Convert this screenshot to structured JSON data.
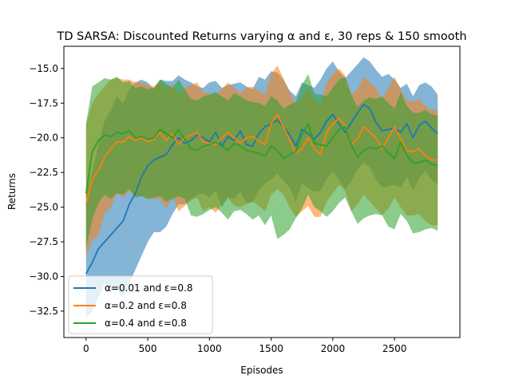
{
  "chart_data": {
    "type": "line",
    "title": "TD SARSA: Discounted Returns varying α and ε, 30 reps & 150 smooth",
    "xlabel": "Episodes",
    "ylabel": "Returns",
    "xlim": [
      -180,
      3030
    ],
    "ylim": [
      -34.4,
      -13.4
    ],
    "xticks": [
      0,
      500,
      1000,
      1500,
      2000,
      2500
    ],
    "yticks": [
      -32.5,
      -30.0,
      -27.5,
      -25.0,
      -22.5,
      -20.0,
      -17.5,
      -15.0
    ],
    "xtick_labels": [
      "0",
      "500",
      "1000",
      "1500",
      "2000",
      "2500"
    ],
    "ytick_labels": [
      "−32.5",
      "−30.0",
      "−27.5",
      "−25.0",
      "−22.5",
      "−20.0",
      "−17.5",
      "−15.0"
    ],
    "legend_position": "lower-left",
    "grid": false,
    "x": [
      0,
      50,
      100,
      150,
      200,
      250,
      300,
      350,
      400,
      450,
      500,
      550,
      600,
      650,
      700,
      750,
      800,
      850,
      900,
      950,
      1000,
      1050,
      1100,
      1150,
      1200,
      1250,
      1300,
      1350,
      1400,
      1450,
      1500,
      1550,
      1600,
      1650,
      1700,
      1750,
      1800,
      1850,
      1900,
      1950,
      2000,
      2050,
      2100,
      2150,
      2200,
      2250,
      2300,
      2350,
      2400,
      2450,
      2500,
      2550,
      2600,
      2650,
      2700,
      2750,
      2800,
      2850
    ],
    "series": [
      {
        "name": "α=0.01 and ε=0.8",
        "color": "#1f77b4",
        "values": [
          -29.8,
          -29.0,
          -28.0,
          -27.5,
          -27.0,
          -26.5,
          -26.0,
          -24.8,
          -24.0,
          -22.8,
          -22.0,
          -21.6,
          -21.4,
          -21.2,
          -20.5,
          -20.0,
          -20.4,
          -20.2,
          -19.8,
          -20.0,
          -20.3,
          -19.6,
          -20.6,
          -19.9,
          -20.2,
          -19.5,
          -20.5,
          -20.6,
          -19.7,
          -19.2,
          -19.0,
          -18.7,
          -19.2,
          -19.8,
          -20.6,
          -19.4,
          -19.7,
          -20.1,
          -19.6,
          -18.8,
          -18.3,
          -19.0,
          -19.6,
          -18.9,
          -18.2,
          -17.6,
          -17.9,
          -18.9,
          -19.5,
          -19.4,
          -19.3,
          -19.6,
          -19.0,
          -20.0,
          -19.1,
          -18.8,
          -19.3,
          -19.7
        ],
        "band_upper": [
          -24.0,
          -22.5,
          -20.5,
          -18.8,
          -18.0,
          -17.0,
          -17.5,
          -16.5,
          -16.0,
          -15.8,
          -16.0,
          -16.5,
          -15.8,
          -15.9,
          -15.9,
          -15.5,
          -15.8,
          -16.0,
          -16.3,
          -16.4,
          -16.0,
          -15.9,
          -16.4,
          -16.2,
          -16.1,
          -16.0,
          -16.3,
          -16.5,
          -15.6,
          -15.8,
          -15.2,
          -15.3,
          -15.8,
          -16.6,
          -17.0,
          -16.0,
          -16.2,
          -16.4,
          -15.8,
          -15.0,
          -14.5,
          -15.2,
          -15.7,
          -15.2,
          -14.7,
          -14.2,
          -14.5,
          -15.1,
          -15.6,
          -15.4,
          -15.8,
          -16.4,
          -16.1,
          -17.0,
          -16.2,
          -16.0,
          -16.3,
          -16.9
        ],
        "band_lower": [
          -33.0,
          -32.5,
          -31.5,
          -30.5,
          -31.0,
          -31.0,
          -31.5,
          -30.5,
          -29.5,
          -28.5,
          -27.5,
          -26.8,
          -26.8,
          -26.4,
          -25.5,
          -24.8,
          -24.8,
          -24.4,
          -24.1,
          -24.0,
          -24.3,
          -23.8,
          -25.0,
          -24.3,
          -24.4,
          -23.9,
          -24.7,
          -24.6,
          -23.8,
          -23.3,
          -23.0,
          -22.6,
          -23.1,
          -23.6,
          -24.6,
          -23.3,
          -23.6,
          -23.9,
          -23.8,
          -23.0,
          -22.4,
          -23.0,
          -23.7,
          -23.1,
          -22.3,
          -21.8,
          -22.1,
          -23.0,
          -23.6,
          -23.5,
          -23.4,
          -23.6,
          -22.8,
          -23.8,
          -22.9,
          -22.4,
          -23.0,
          -23.4
        ]
      },
      {
        "name": "α=0.2 and ε=0.8",
        "color": "#ff7f0e",
        "values": [
          -24.8,
          -23.0,
          -22.3,
          -21.4,
          -20.8,
          -20.3,
          -20.3,
          -19.9,
          -20.2,
          -20.0,
          -20.3,
          -20.1,
          -19.6,
          -20.2,
          -19.7,
          -20.5,
          -20.0,
          -19.8,
          -19.6,
          -20.3,
          -20.4,
          -20.5,
          -20.0,
          -19.6,
          -20.0,
          -20.4,
          -20.0,
          -19.9,
          -20.2,
          -20.5,
          -19.0,
          -18.3,
          -19.2,
          -20.2,
          -21.1,
          -20.8,
          -20.0,
          -20.8,
          -21.2,
          -19.6,
          -19.0,
          -18.6,
          -19.1,
          -20.5,
          -20.1,
          -19.2,
          -19.6,
          -20.0,
          -20.8,
          -20.0,
          -19.2,
          -20.1,
          -20.9,
          -21.0,
          -20.8,
          -21.3,
          -21.6,
          -21.6
        ],
        "band_upper": [
          -19.0,
          -17.5,
          -16.8,
          -16.3,
          -15.8,
          -15.7,
          -15.8,
          -15.8,
          -16.0,
          -16.0,
          -16.2,
          -16.3,
          -15.9,
          -16.5,
          -16.1,
          -16.9,
          -16.4,
          -16.2,
          -16.0,
          -16.7,
          -16.8,
          -16.9,
          -16.5,
          -16.0,
          -16.4,
          -16.8,
          -16.4,
          -16.3,
          -16.6,
          -16.9,
          -15.4,
          -14.8,
          -15.7,
          -16.7,
          -17.6,
          -17.2,
          -16.4,
          -17.3,
          -17.6,
          -16.0,
          -15.4,
          -15.0,
          -15.5,
          -16.9,
          -16.5,
          -15.6,
          -16.0,
          -16.4,
          -17.2,
          -16.4,
          -15.6,
          -16.5,
          -17.3,
          -17.4,
          -17.2,
          -17.7,
          -18.0,
          -18.0
        ],
        "band_lower": [
          -28.5,
          -27.4,
          -27.0,
          -25.5,
          -25.0,
          -24.0,
          -24.3,
          -23.8,
          -24.3,
          -24.1,
          -24.4,
          -24.4,
          -24.4,
          -25.1,
          -24.2,
          -25.3,
          -24.9,
          -24.5,
          -24.3,
          -25.3,
          -25.0,
          -25.4,
          -24.8,
          -24.3,
          -24.9,
          -25.0,
          -24.8,
          -24.6,
          -24.9,
          -25.3,
          -24.1,
          -23.7,
          -24.1,
          -25.0,
          -25.7,
          -25.3,
          -24.9,
          -25.7,
          -25.7,
          -24.6,
          -24.0,
          -23.4,
          -23.8,
          -25.3,
          -24.8,
          -24.1,
          -24.6,
          -25.1,
          -25.6,
          -25.1,
          -24.3,
          -25.0,
          -25.6,
          -25.6,
          -25.5,
          -26.0,
          -26.3,
          -26.3
        ]
      },
      {
        "name": "α=0.4 and ε=0.8",
        "color": "#2ca02c",
        "values": [
          -24.0,
          -21.0,
          -20.2,
          -19.8,
          -19.9,
          -19.6,
          -19.7,
          -19.5,
          -20.0,
          -19.9,
          -20.1,
          -20.0,
          -19.4,
          -19.7,
          -20.0,
          -19.4,
          -20.1,
          -20.8,
          -20.9,
          -20.6,
          -20.5,
          -20.3,
          -20.6,
          -20.9,
          -20.4,
          -20.6,
          -20.9,
          -21.0,
          -21.1,
          -21.3,
          -20.6,
          -20.9,
          -21.5,
          -21.2,
          -21.0,
          -19.8,
          -19.0,
          -20.4,
          -20.5,
          -20.6,
          -20.0,
          -19.4,
          -19.2,
          -20.5,
          -21.4,
          -20.9,
          -20.7,
          -20.8,
          -20.6,
          -21.1,
          -21.5,
          -20.3,
          -21.3,
          -21.8,
          -21.8,
          -21.6,
          -21.9,
          -22.0
        ],
        "band_upper": [
          -19.0,
          -16.3,
          -16.0,
          -15.7,
          -15.8,
          -15.6,
          -16.0,
          -15.9,
          -16.4,
          -16.3,
          -16.5,
          -16.4,
          -15.8,
          -16.1,
          -16.4,
          -15.8,
          -16.5,
          -17.2,
          -17.3,
          -17.0,
          -16.9,
          -16.7,
          -17.0,
          -17.3,
          -16.8,
          -17.0,
          -17.3,
          -17.4,
          -17.5,
          -17.7,
          -17.0,
          -17.3,
          -17.9,
          -17.6,
          -17.4,
          -16.2,
          -15.4,
          -16.8,
          -16.9,
          -17.0,
          -16.4,
          -15.8,
          -15.6,
          -16.9,
          -17.8,
          -17.3,
          -17.1,
          -17.2,
          -17.0,
          -17.5,
          -17.9,
          -16.7,
          -17.7,
          -18.2,
          -18.2,
          -18.0,
          -18.3,
          -18.4
        ],
        "band_lower": [
          -28.0,
          -25.9,
          -24.7,
          -24.1,
          -24.4,
          -24.0,
          -24.1,
          -23.7,
          -24.3,
          -24.2,
          -24.4,
          -24.3,
          -24.2,
          -24.6,
          -24.4,
          -24.2,
          -24.4,
          -25.6,
          -25.7,
          -25.5,
          -25.2,
          -25.0,
          -25.4,
          -25.9,
          -25.3,
          -25.2,
          -25.5,
          -25.9,
          -25.6,
          -26.3,
          -25.6,
          -27.3,
          -27.0,
          -26.6,
          -25.8,
          -25.1,
          -24.1,
          -25.0,
          -25.3,
          -25.7,
          -25.3,
          -24.7,
          -24.3,
          -25.3,
          -26.2,
          -25.8,
          -25.6,
          -25.5,
          -25.6,
          -26.4,
          -26.6,
          -25.5,
          -26.0,
          -26.9,
          -26.8,
          -26.6,
          -26.5,
          -26.7
        ]
      }
    ]
  }
}
